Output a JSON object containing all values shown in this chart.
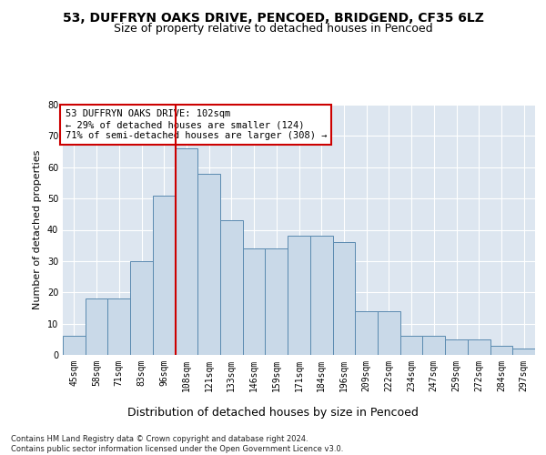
{
  "title1": "53, DUFFRYN OAKS DRIVE, PENCOED, BRIDGEND, CF35 6LZ",
  "title2": "Size of property relative to detached houses in Pencoed",
  "xlabel": "Distribution of detached houses by size in Pencoed",
  "ylabel": "Number of detached properties",
  "footnote": "Contains HM Land Registry data © Crown copyright and database right 2024.\nContains public sector information licensed under the Open Government Licence v3.0.",
  "categories": [
    "45sqm",
    "58sqm",
    "71sqm",
    "83sqm",
    "96sqm",
    "108sqm",
    "121sqm",
    "133sqm",
    "146sqm",
    "159sqm",
    "171sqm",
    "184sqm",
    "196sqm",
    "209sqm",
    "222sqm",
    "234sqm",
    "247sqm",
    "259sqm",
    "272sqm",
    "284sqm",
    "297sqm"
  ],
  "values": [
    6,
    18,
    18,
    30,
    51,
    66,
    58,
    43,
    34,
    34,
    38,
    38,
    36,
    14,
    14,
    6,
    6,
    5,
    5,
    3,
    2
  ],
  "bar_color": "#c9d9e8",
  "bar_edge_color": "#5a8ab0",
  "vline_color": "#cc0000",
  "annotation_text": "53 DUFFRYN OAKS DRIVE: 102sqm\n← 29% of detached houses are smaller (124)\n71% of semi-detached houses are larger (308) →",
  "annotation_box_color": "#cc0000",
  "ylim": [
    0,
    80
  ],
  "yticks": [
    0,
    10,
    20,
    30,
    40,
    50,
    60,
    70,
    80
  ],
  "plot_bg_color": "#dde6f0",
  "grid_color": "#ffffff",
  "title1_fontsize": 10,
  "title2_fontsize": 9,
  "xlabel_fontsize": 9,
  "ylabel_fontsize": 8,
  "tick_fontsize": 7,
  "annotation_fontsize": 7.5,
  "footnote_fontsize": 6
}
